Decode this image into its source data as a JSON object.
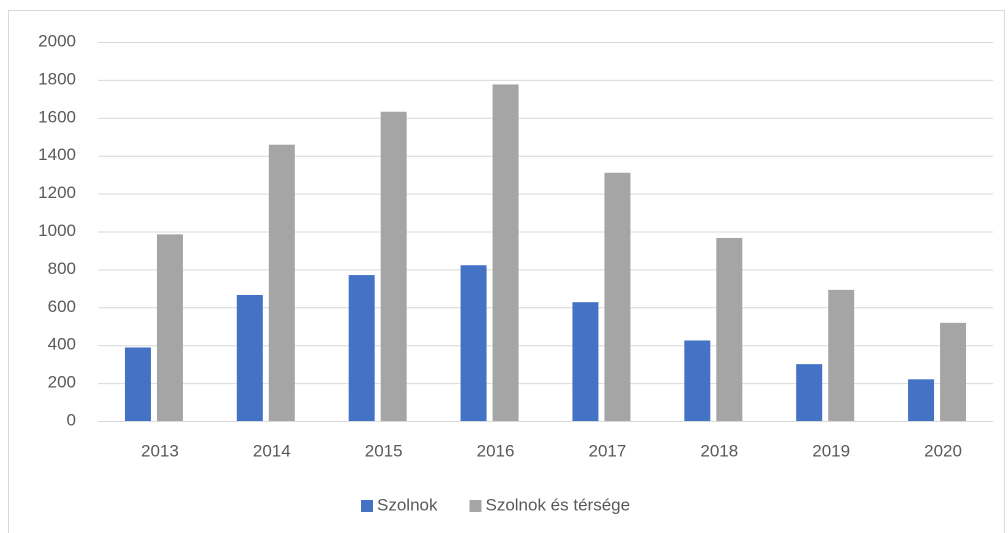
{
  "chart_data": {
    "type": "bar",
    "categories": [
      "2013",
      "2014",
      "2015",
      "2016",
      "2017",
      "2018",
      "2019",
      "2020"
    ],
    "series": [
      {
        "name": "Szolnok",
        "color": "#4472c4",
        "values": [
          388,
          665,
          770,
          822,
          627,
          425,
          300,
          220
        ]
      },
      {
        "name": "Szolnok és térsége",
        "color": "#a5a5a5",
        "values": [
          985,
          1458,
          1632,
          1776,
          1310,
          966,
          692,
          518
        ]
      }
    ],
    "ylim": [
      0,
      2000
    ],
    "yticks": [
      0,
      200,
      400,
      600,
      800,
      1000,
      1200,
      1400,
      1600,
      1800,
      2000
    ],
    "grid": true,
    "legend": "bottom"
  }
}
